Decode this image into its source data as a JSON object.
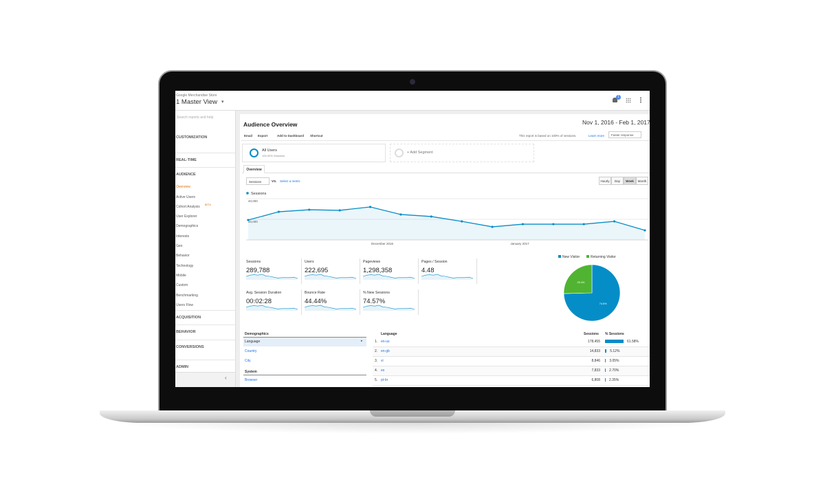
{
  "header": {
    "account": "Google Merchandise Store",
    "view": "1 Master View",
    "notifications": "1"
  },
  "sidebar": {
    "search": "Search reports and help",
    "beta": "BETA",
    "items": [
      "CUSTOMIZATION",
      "REAL-TIME",
      "AUDIENCE",
      "Overview",
      "Active Users",
      "Cohort Analysis",
      "User Explorer",
      "Demographics",
      "Interests",
      "Geo",
      "Behavior",
      "Technology",
      "Mobile",
      "Custom",
      "Benchmarking",
      "Users Flow",
      "ACQUISITION",
      "BEHAVIOR",
      "CONVERSIONS",
      "ADMIN"
    ]
  },
  "report": {
    "title": "Audience Overview",
    "date_range": "Nov 1, 2016 - Feb 1, 2017",
    "toolbar": [
      "Email",
      "Export",
      "Add to Dashboard",
      "Shortcut"
    ],
    "sampling_note": "This report is based on 100% of sessions.",
    "learn_more": "Learn more",
    "response": "Faster response",
    "segment": {
      "name": "All Users",
      "detail": "100.00% Sessions"
    },
    "add_segment": "+ Add Segment",
    "tab": "Overview",
    "metric_select": "Sessions",
    "vs": "VS.",
    "select_metric": "Select a metric",
    "granularity": [
      "Hourly",
      "Day",
      "Week",
      "Month"
    ]
  },
  "chart_data": [
    {
      "type": "line",
      "series": [
        {
          "name": "Sessions",
          "color": "#058dc7",
          "values": [
            19300,
            27300,
            29300,
            28700,
            32000,
            24700,
            22700,
            18000,
            12700,
            15300,
            15300,
            15300,
            18000,
            9300
          ]
        }
      ],
      "ylim": [
        0,
        42000
      ],
      "yticks": [
        {
          "value": 20000,
          "label": "20,000"
        },
        {
          "value": 40000,
          "label": "40,000"
        }
      ],
      "x_labels": [
        "December 2016",
        "January 2017"
      ],
      "grid": true
    },
    {
      "type": "pie",
      "categories": [
        "New Visitor",
        "Returning Visitor"
      ],
      "values": [
        74.6,
        25.4
      ],
      "value_labels": [
        "74.6%",
        "25.4%"
      ],
      "colors": [
        "#058dc7",
        "#50b432"
      ]
    }
  ],
  "metrics": [
    {
      "label": "Sessions",
      "value": "289,788"
    },
    {
      "label": "Users",
      "value": "222,695"
    },
    {
      "label": "Pageviews",
      "value": "1,298,358"
    },
    {
      "label": "Pages / Session",
      "value": "4.48"
    },
    {
      "label": "Avg. Session Duration",
      "value": "00:02:28"
    },
    {
      "label": "Bounce Rate",
      "value": "44.44%"
    },
    {
      "label": "% New Sessions",
      "value": "74.57%"
    }
  ],
  "demographics": {
    "heading": "Demographics",
    "items": [
      "Language",
      "Country",
      "City"
    ],
    "system_heading": "System",
    "system_items": [
      "Browser"
    ]
  },
  "language_table": {
    "headers": [
      "Language",
      "Sessions",
      "% Sessions"
    ],
    "rows": [
      {
        "rank": "1.",
        "language": "en-us",
        "sessions": "178,455",
        "share": {
          "value": 61.58,
          "label": "61.58%"
        }
      },
      {
        "rank": "2.",
        "language": "en-gb",
        "sessions": "14,833",
        "share": {
          "value": 5.12,
          "label": "5.12%"
        }
      },
      {
        "rank": "3.",
        "language": "vi",
        "sessions": "8,846",
        "share": {
          "value": 3.05,
          "label": "3.05%"
        }
      },
      {
        "rank": "4.",
        "language": "es",
        "sessions": "7,833",
        "share": {
          "value": 2.7,
          "label": "2.70%"
        }
      },
      {
        "rank": "5.",
        "language": "pt-br",
        "sessions": "6,808",
        "share": {
          "value": 2.35,
          "label": "2.35%"
        }
      }
    ]
  }
}
